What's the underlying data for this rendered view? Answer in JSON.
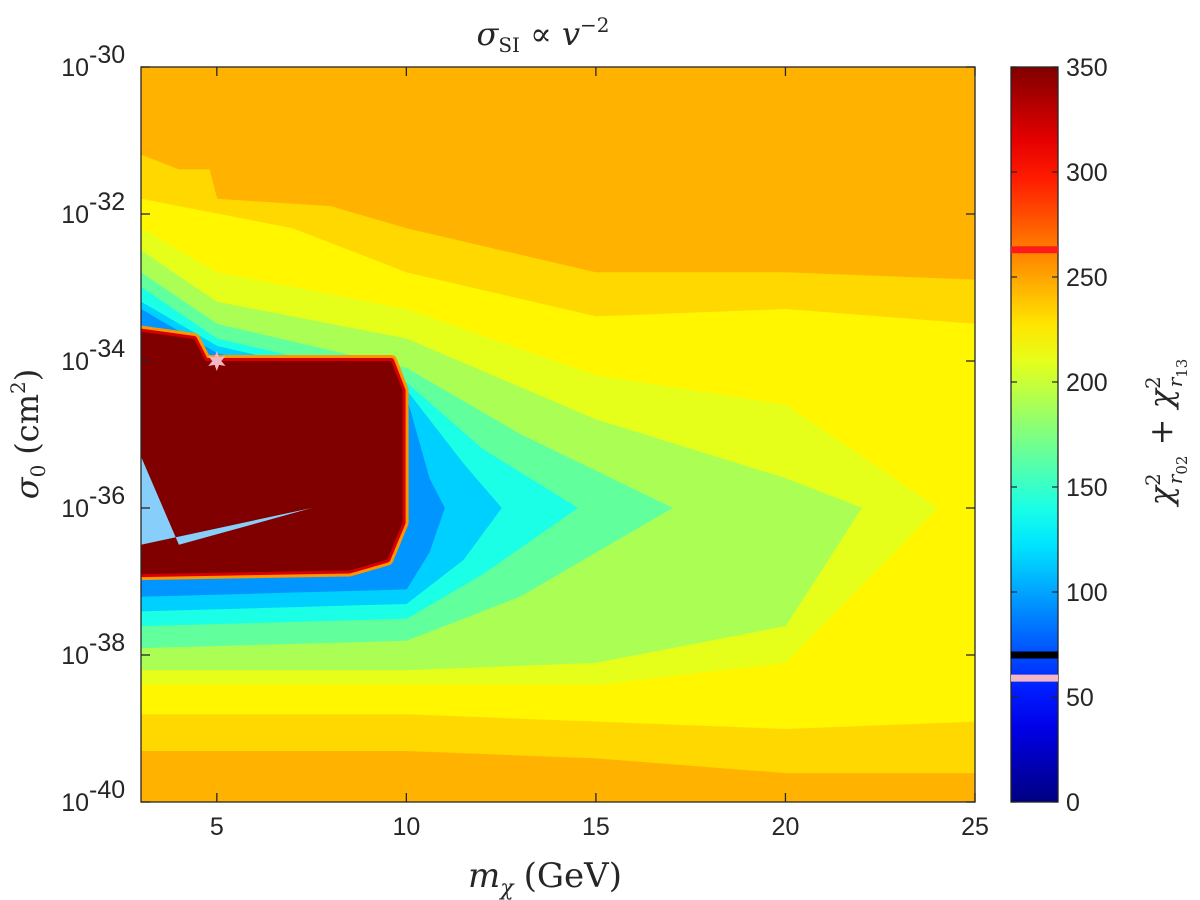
{
  "chart_data": {
    "type": "heatmap",
    "title": {
      "symbol": "σ",
      "symbol_sub": "SI",
      "relation": " ∝ ",
      "variable": "v",
      "exponent": "−2"
    },
    "xlabel": {
      "symbol": "m",
      "symbol_sub": "χ",
      "unit": "(GeV)"
    },
    "ylabel": {
      "symbol": "σ",
      "symbol_sub": "0",
      "unit_prefix": "(cm",
      "unit_exp": "2",
      "unit_suffix": ")"
    },
    "colorbar_label": {
      "term1": "χ",
      "term1_sup": "2",
      "term1_sub": "r",
      "term1_subsub": "02",
      "plus": " + ",
      "term2": "χ",
      "term2_sup": "2",
      "term2_sub": "r",
      "term2_subsub": "13"
    },
    "x_scale": "linear",
    "y_scale": "log",
    "xlim": [
      3,
      25
    ],
    "ylim": [
      1e-40,
      1e-30
    ],
    "clim": [
      0,
      350
    ],
    "x_ticks": [
      "5",
      "10",
      "15",
      "20",
      "25"
    ],
    "x_tick_values": [
      5,
      10,
      15,
      20,
      25
    ],
    "y_ticks": [
      {
        "base": "10",
        "exp": "-30",
        "log": -30
      },
      {
        "base": "10",
        "exp": "-32",
        "log": -32
      },
      {
        "base": "10",
        "exp": "-34",
        "log": -34
      },
      {
        "base": "10",
        "exp": "-36",
        "log": -36
      },
      {
        "base": "10",
        "exp": "-38",
        "log": -38
      },
      {
        "base": "10",
        "exp": "-40",
        "log": -40
      }
    ],
    "colorbar_ticks": [
      "0",
      "50",
      "100",
      "150",
      "200",
      "250",
      "300",
      "350"
    ],
    "colorbar_tick_values": [
      0,
      50,
      100,
      150,
      200,
      250,
      300,
      350
    ],
    "colormap": "jet",
    "colorbar_markers": [
      {
        "value": 263,
        "color": "#ff1a1a"
      },
      {
        "value": 70,
        "color": "#000000"
      },
      {
        "value": 59,
        "color": "#f4b6c2"
      }
    ],
    "best_fit_marker": {
      "x": 5,
      "log10_y": -34,
      "color": "#f4b6c2",
      "shape": "star"
    },
    "background_value": 245,
    "no_data_region": {
      "color": "#87cefa",
      "polygon_log": [
        [
          3,
          -35.3
        ],
        [
          4,
          -36.5
        ],
        [
          7.5,
          -36.0
        ],
        [
          3,
          -36.5
        ]
      ]
    },
    "regions": [
      {
        "description": "saturated",
        "value": 350,
        "polygon_log": [
          [
            3,
            -33.6
          ],
          [
            4.4,
            -33.7
          ],
          [
            4.7,
            -34.0
          ],
          [
            9.6,
            -34.0
          ],
          [
            9.9,
            -34.4
          ],
          [
            9.9,
            -36.2
          ],
          [
            9.5,
            -36.7
          ],
          [
            8.5,
            -36.85
          ],
          [
            3,
            -36.9
          ]
        ]
      },
      {
        "value": 232,
        "polygon_log": [
          [
            3,
            -31.2
          ],
          [
            4,
            -31.4
          ],
          [
            4.8,
            -31.4
          ],
          [
            5,
            -31.8
          ],
          [
            8,
            -31.9
          ],
          [
            10,
            -32.2
          ],
          [
            15,
            -32.8
          ],
          [
            20,
            -32.8
          ],
          [
            25,
            -32.9
          ],
          [
            25,
            -39.6
          ],
          [
            20,
            -39.6
          ],
          [
            15,
            -39.4
          ],
          [
            10,
            -39.3
          ],
          [
            5,
            -39.3
          ],
          [
            3,
            -39.3
          ]
        ]
      },
      {
        "value": 222,
        "polygon_log": [
          [
            3,
            -31.8
          ],
          [
            5,
            -32.0
          ],
          [
            7,
            -32.2
          ],
          [
            10,
            -32.8
          ],
          [
            15,
            -33.4
          ],
          [
            20,
            -33.3
          ],
          [
            25,
            -33.5
          ],
          [
            25,
            -38.9
          ],
          [
            20,
            -39.0
          ],
          [
            15,
            -38.9
          ],
          [
            10,
            -38.8
          ],
          [
            5,
            -38.8
          ],
          [
            3,
            -38.8
          ]
        ]
      },
      {
        "value": 210,
        "polygon_log": [
          [
            3,
            -32.2
          ],
          [
            5,
            -32.8
          ],
          [
            10,
            -33.3
          ],
          [
            15,
            -34.2
          ],
          [
            20,
            -34.6
          ],
          [
            24,
            -36.0
          ],
          [
            20,
            -38.1
          ],
          [
            15,
            -38.4
          ],
          [
            10,
            -38.4
          ],
          [
            3,
            -38.4
          ]
        ]
      },
      {
        "value": 190,
        "polygon_log": [
          [
            3,
            -32.5
          ],
          [
            5,
            -33.2
          ],
          [
            10,
            -33.7
          ],
          [
            15,
            -34.8
          ],
          [
            20,
            -35.6
          ],
          [
            22,
            -36.0
          ],
          [
            20,
            -37.6
          ],
          [
            15,
            -38.1
          ],
          [
            10,
            -38.2
          ],
          [
            3,
            -38.2
          ]
        ]
      },
      {
        "value": 165,
        "polygon_log": [
          [
            3,
            -32.8
          ],
          [
            5,
            -33.5
          ],
          [
            10,
            -34.1
          ],
          [
            13,
            -35.0
          ],
          [
            17,
            -36.0
          ],
          [
            13,
            -37.2
          ],
          [
            10,
            -37.8
          ],
          [
            3,
            -37.9
          ]
        ]
      },
      {
        "value": 140,
        "polygon_log": [
          [
            3,
            -33.0
          ],
          [
            5,
            -33.7
          ],
          [
            10,
            -34.3
          ],
          [
            12,
            -35.2
          ],
          [
            14.5,
            -36.0
          ],
          [
            12,
            -36.9
          ],
          [
            10,
            -37.5
          ],
          [
            3,
            -37.6
          ]
        ]
      },
      {
        "value": 115,
        "polygon_log": [
          [
            3,
            -33.2
          ],
          [
            5,
            -33.8
          ],
          [
            10,
            -34.4
          ],
          [
            11.5,
            -35.4
          ],
          [
            12.5,
            -36.0
          ],
          [
            11.5,
            -36.7
          ],
          [
            10,
            -37.3
          ],
          [
            3,
            -37.4
          ]
        ]
      },
      {
        "value": 95,
        "polygon_log": [
          [
            3,
            -33.3
          ],
          [
            5,
            -33.9
          ],
          [
            10,
            -34.5
          ],
          [
            10.6,
            -35.6
          ],
          [
            11,
            -36.0
          ],
          [
            10.6,
            -36.6
          ],
          [
            10,
            -37.1
          ],
          [
            3,
            -37.2
          ]
        ]
      }
    ]
  }
}
